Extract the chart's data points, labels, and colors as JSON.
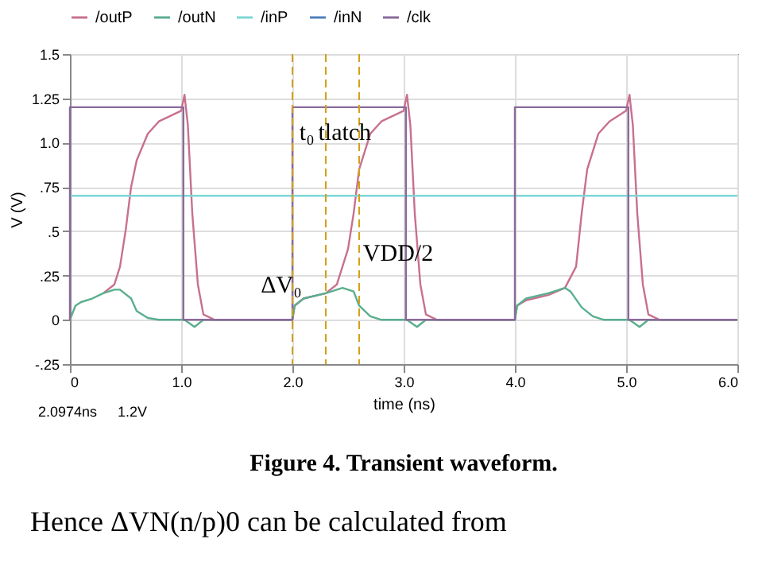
{
  "chart_data": {
    "type": "line",
    "xlabel": "time (ns)",
    "ylabel": "V (V)",
    "xlim": [
      0,
      6
    ],
    "ylim": [
      -0.25,
      1.5
    ],
    "xticks": [
      {
        "value": 0,
        "label": "0"
      },
      {
        "value": 1,
        "label": "1.0"
      },
      {
        "value": 2,
        "label": "2.0"
      },
      {
        "value": 3,
        "label": "3.0"
      },
      {
        "value": 4,
        "label": "4.0"
      },
      {
        "value": 5,
        "label": "5.0"
      },
      {
        "value": 6,
        "label": "6.0"
      }
    ],
    "yticks": [
      {
        "value": -0.25,
        "label": "-.25"
      },
      0,
      {
        "value": 0.25,
        "label": ".25"
      },
      {
        "value": 0.5,
        "label": ".5"
      },
      {
        "value": 0.75,
        "label": ".75"
      },
      {
        "value": 1,
        "label": "1.0"
      },
      {
        "value": 1.25,
        "label": "1.25"
      },
      {
        "value": 1.5,
        "label": "1.5"
      }
    ],
    "grid": true,
    "legend": "top left",
    "line_style": "solid",
    "marker": "none",
    "series": [
      {
        "name": "/outP",
        "color": "#c8708e",
        "x": [
          0.3,
          0.4,
          0.45,
          0.5,
          0.55,
          0.6,
          0.7,
          0.8,
          1.0,
          1.03,
          1.06,
          1.1,
          1.15,
          1.2,
          1.3,
          2.0,
          2.02,
          2.1,
          2.3,
          2.4,
          2.5,
          2.55,
          2.6,
          2.7,
          2.8,
          3.0,
          3.03,
          3.06,
          3.1,
          3.15,
          3.2,
          3.3,
          4.0,
          4.02,
          4.1,
          4.3,
          4.45,
          4.55,
          4.6,
          4.65,
          4.75,
          4.85,
          5.0,
          5.03,
          5.06,
          5.1,
          5.15,
          5.2,
          5.3,
          6.0
        ],
        "values": [
          0.15,
          0.2,
          0.3,
          0.5,
          0.75,
          0.9,
          1.05,
          1.12,
          1.18,
          1.27,
          1.1,
          0.6,
          0.2,
          0.03,
          0,
          0,
          0.08,
          0.12,
          0.15,
          0.2,
          0.4,
          0.6,
          0.85,
          1.05,
          1.12,
          1.18,
          1.27,
          1.1,
          0.6,
          0.2,
          0.03,
          0,
          0,
          0.08,
          0.11,
          0.14,
          0.18,
          0.3,
          0.6,
          0.85,
          1.05,
          1.12,
          1.18,
          1.27,
          1.1,
          0.6,
          0.2,
          0.03,
          0,
          0
        ]
      },
      {
        "name": "/outN",
        "color": "#5aae8e",
        "x": [
          0,
          0.05,
          0.1,
          0.2,
          0.3,
          0.4,
          0.45,
          0.55,
          0.6,
          0.7,
          0.8,
          1.03,
          1.12,
          1.2,
          2.0,
          2.02,
          2.1,
          2.3,
          2.45,
          2.55,
          2.6,
          2.7,
          2.8,
          3.03,
          3.12,
          3.2,
          4.0,
          4.02,
          4.1,
          4.3,
          4.45,
          4.5,
          4.6,
          4.7,
          4.8,
          5.03,
          5.12,
          5.2,
          6.0
        ],
        "values": [
          0,
          0.08,
          0.1,
          0.12,
          0.15,
          0.17,
          0.17,
          0.12,
          0.05,
          0.01,
          0,
          0,
          -0.04,
          0,
          0,
          0.08,
          0.12,
          0.15,
          0.18,
          0.16,
          0.08,
          0.02,
          0,
          0,
          -0.04,
          0,
          0,
          0.08,
          0.12,
          0.15,
          0.18,
          0.16,
          0.07,
          0.02,
          0,
          0,
          -0.04,
          0,
          0
        ]
      },
      {
        "name": "/inP",
        "color": "#7fd6d6",
        "x": [
          0,
          6
        ],
        "values": [
          0.7,
          0.7
        ]
      },
      {
        "name": "/inN",
        "color": "#4f81bd"
      },
      {
        "name": "/clk",
        "color": "#8a6a9a",
        "x": [
          0,
          0,
          1.02,
          1.02,
          2.0,
          2.0,
          3.02,
          3.02,
          4.0,
          4.0,
          5.02,
          5.02,
          6.0
        ],
        "values": [
          0,
          1.2,
          1.2,
          0,
          0,
          1.2,
          1.2,
          0,
          0,
          1.2,
          1.2,
          0,
          0
        ]
      }
    ],
    "ref_lines": [
      {
        "axis": "x",
        "value": 2.0,
        "color": "#d4a017",
        "line_style": "dashed"
      },
      {
        "axis": "x",
        "value": 2.3,
        "color": "#d4a017",
        "line_style": "dashed"
      },
      {
        "axis": "x",
        "value": 2.6,
        "color": "#d4a017",
        "line_style": "dashed"
      }
    ],
    "annotations": [
      "t₀",
      "tlatch",
      "VDD/2",
      "ΔV₀",
      "2.0974ns",
      "1.2V",
      "Figure 4. Transient waveform.",
      "Hence ΔVN(n/p)0 can be calculated from"
    ]
  }
}
